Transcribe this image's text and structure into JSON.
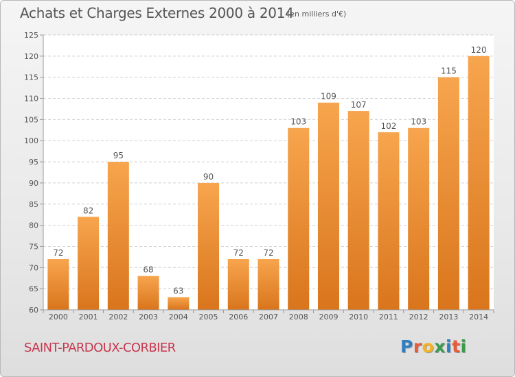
{
  "header": {
    "title": "Achats et Charges Externes 2000 à 2014",
    "unit": "(en milliers d'€)"
  },
  "footer": {
    "location": "SAINT-PARDOUX-CORBIER",
    "logo": {
      "text": "Proxiti",
      "letters": [
        {
          "char": "P",
          "color": "#2f7fc1"
        },
        {
          "char": "r",
          "color": "#e85a3a"
        },
        {
          "char": "o",
          "color": "#f5b321"
        },
        {
          "char": "x",
          "color": "#3b9b4a"
        },
        {
          "char": "i",
          "color": "#2f7fc1"
        },
        {
          "char": "t",
          "color": "#e85a3a"
        },
        {
          "char": "i",
          "color": "#3b9b4a"
        }
      ]
    }
  },
  "colors": {
    "bar_light": "#f7a54e",
    "bar_dark": "#d9751c",
    "grid": "#cfcfcf",
    "plot_background": "#ffffff",
    "text": "#555555",
    "location": "#c8364e"
  },
  "chart_data": {
    "type": "bar",
    "title": "Achats et Charges Externes 2000 à 2014",
    "subtitle": "(en milliers d'€)",
    "xlabel": "",
    "ylabel": "",
    "categories": [
      "2000",
      "2001",
      "2002",
      "2003",
      "2004",
      "2005",
      "2006",
      "2007",
      "2008",
      "2009",
      "2010",
      "2011",
      "2012",
      "2013",
      "2014"
    ],
    "values": [
      72,
      82,
      95,
      68,
      63,
      90,
      72,
      72,
      103,
      109,
      107,
      102,
      103,
      115,
      120
    ],
    "data_labels": [
      "72",
      "82",
      "95",
      "68",
      "63",
      "90",
      "72",
      "72",
      "103",
      "109",
      "107",
      "102",
      "103",
      "115",
      "120"
    ],
    "ylim": [
      60,
      125
    ],
    "yticks": [
      60,
      65,
      70,
      75,
      80,
      85,
      90,
      95,
      100,
      105,
      110,
      115,
      120,
      125
    ],
    "grid": true,
    "legend": "none"
  }
}
